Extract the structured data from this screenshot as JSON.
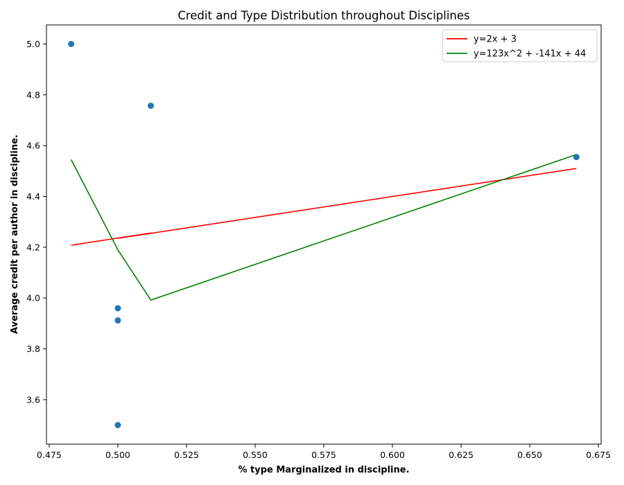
{
  "chart_data": {
    "type": "scatter",
    "title": "Credit and Type Distribution throughout Disciplines",
    "xlabel": "% type Marginalized in discipline.",
    "ylabel": "Average credit per author in discipline.",
    "xlim": [
      0.474,
      0.676
    ],
    "ylim": [
      3.425,
      5.075
    ],
    "xticks": [
      0.475,
      0.5,
      0.525,
      0.55,
      0.575,
      0.6,
      0.625,
      0.65,
      0.675
    ],
    "xtick_labels": [
      "0.475",
      "0.500",
      "0.525",
      "0.550",
      "0.575",
      "0.600",
      "0.625",
      "0.650",
      "0.675"
    ],
    "yticks": [
      3.6,
      3.8,
      4.0,
      4.2,
      4.4,
      4.6,
      4.8,
      5.0
    ],
    "ytick_labels": [
      "3.6",
      "3.8",
      "4.0",
      "4.2",
      "4.4",
      "4.6",
      "4.8",
      "5.0"
    ],
    "grid": false,
    "legend_position": "top-right",
    "points": {
      "color": "#1f77b4",
      "x": [
        0.483,
        0.512,
        0.5,
        0.5,
        0.5,
        0.667
      ],
      "y": [
        5.0,
        4.757,
        3.96,
        3.912,
        3.5,
        4.555
      ]
    },
    "series": [
      {
        "name": "y=2x + 3",
        "color": "#ff0000",
        "x": [
          0.483,
          0.512,
          0.5,
          0.5,
          0.5,
          0.667
        ],
        "y": [
          4.208,
          4.256,
          4.235,
          4.235,
          4.235,
          4.51
        ]
      },
      {
        "name": "y=123x^2 + -141x + 44",
        "color": "#008000",
        "x": [
          0.483,
          0.5,
          0.5,
          0.5,
          0.512,
          0.667
        ],
        "y": [
          4.545,
          4.19,
          4.19,
          4.19,
          3.992,
          4.565
        ]
      }
    ]
  }
}
